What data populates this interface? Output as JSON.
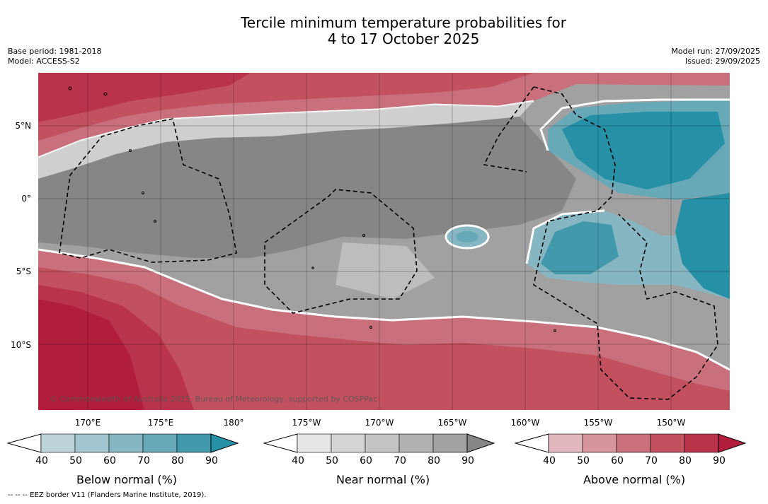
{
  "title_line1": "Tercile minimum temperature probabilities for",
  "title_line2": "4 to 17 October 2025",
  "meta": {
    "base_period": "Base period: 1981-2018",
    "model": "Model: ACCESS-S2",
    "model_run": "Model run: 27/09/2025",
    "issued": "Issued: 29/09/2025"
  },
  "map": {
    "lat_ticks": [
      "5°N",
      "0°",
      "5°S",
      "10°S"
    ],
    "lon_ticks": [
      "170°E",
      "175°E",
      "180°",
      "175°W",
      "170°W",
      "165°W",
      "160°W",
      "155°W",
      "150°W"
    ],
    "credit": "© Commonwealth of Australia 2025, Bureau of Meteorology, supported by COSPPac"
  },
  "colorbars": [
    {
      "title": "Below normal (%)",
      "labels": [
        "40",
        "50",
        "60",
        "70",
        "80",
        "90"
      ],
      "colors": [
        "#ffffff",
        "#bcd3da",
        "#a2c6cf",
        "#86b6c2",
        "#67a9b7",
        "#4399ac",
        "#2690a6"
      ]
    },
    {
      "title": "Near normal (%)",
      "labels": [
        "40",
        "50",
        "60",
        "70",
        "80",
        "90"
      ],
      "colors": [
        "#ffffff",
        "#e5e5e5",
        "#d4d4d4",
        "#c4c4c4",
        "#b1b1b1",
        "#a1a1a1",
        "#868686"
      ]
    },
    {
      "title": "Above normal (%)",
      "labels": [
        "40",
        "50",
        "60",
        "70",
        "80",
        "90"
      ],
      "colors": [
        "#ffffff",
        "#e2b7bd",
        "#d6949d",
        "#c9707c",
        "#c2505f",
        "#b9344a",
        "#b01e3c"
      ]
    }
  ],
  "footnote": "--  --  -- EEZ border V11 (Flanders Marine Institute, 2019)."
}
